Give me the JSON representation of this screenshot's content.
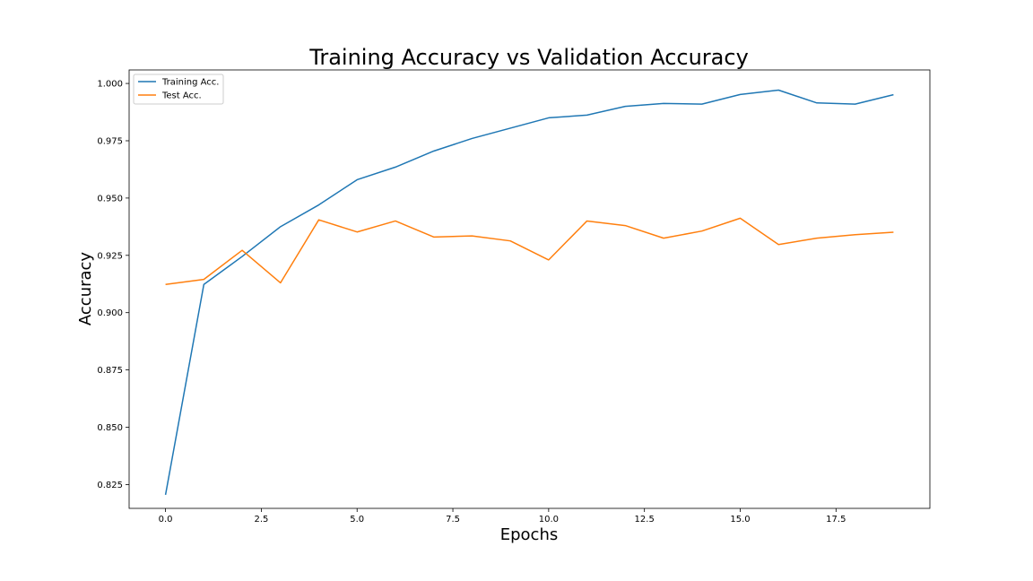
{
  "chart_data": {
    "type": "line",
    "title": "Training Accuracy vs Validation Accuracy",
    "xlabel": "Epochs",
    "ylabel": "Accuracy",
    "x": [
      0,
      1,
      2,
      3,
      4,
      5,
      6,
      7,
      8,
      9,
      10,
      11,
      12,
      13,
      14,
      15,
      16,
      17,
      18,
      19
    ],
    "xlim": [
      -0.95,
      19.95
    ],
    "ylim": [
      0.8146,
      1.0059
    ],
    "xticks": [
      0.0,
      2.5,
      5.0,
      7.5,
      10.0,
      12.5,
      15.0,
      17.5
    ],
    "xtick_labels": [
      "0.0",
      "2.5",
      "5.0",
      "7.5",
      "10.0",
      "12.5",
      "15.0",
      "17.5"
    ],
    "yticks": [
      0.825,
      0.85,
      0.875,
      0.9,
      0.925,
      0.95,
      0.975,
      1.0
    ],
    "ytick_labels": [
      "0.825",
      "0.850",
      "0.875",
      "0.900",
      "0.925",
      "0.950",
      "0.975",
      "1.000"
    ],
    "grid": false,
    "legend_position": "upper-left",
    "series": [
      {
        "name": "Training Acc.",
        "color": "#1f77b4",
        "values": [
          0.8205,
          0.9123,
          0.9245,
          0.9375,
          0.947,
          0.958,
          0.9635,
          0.9705,
          0.976,
          0.9805,
          0.985,
          0.9862,
          0.99,
          0.9913,
          0.991,
          0.9952,
          0.9971,
          0.9915,
          0.991,
          0.9951
        ]
      },
      {
        "name": "Test Acc.",
        "color": "#ff7f0e",
        "values": [
          0.9123,
          0.9145,
          0.9272,
          0.913,
          0.9405,
          0.9352,
          0.94,
          0.933,
          0.9335,
          0.9313,
          0.923,
          0.94,
          0.938,
          0.9325,
          0.9356,
          0.9412,
          0.9297,
          0.9325,
          0.934,
          0.9351
        ]
      }
    ]
  }
}
